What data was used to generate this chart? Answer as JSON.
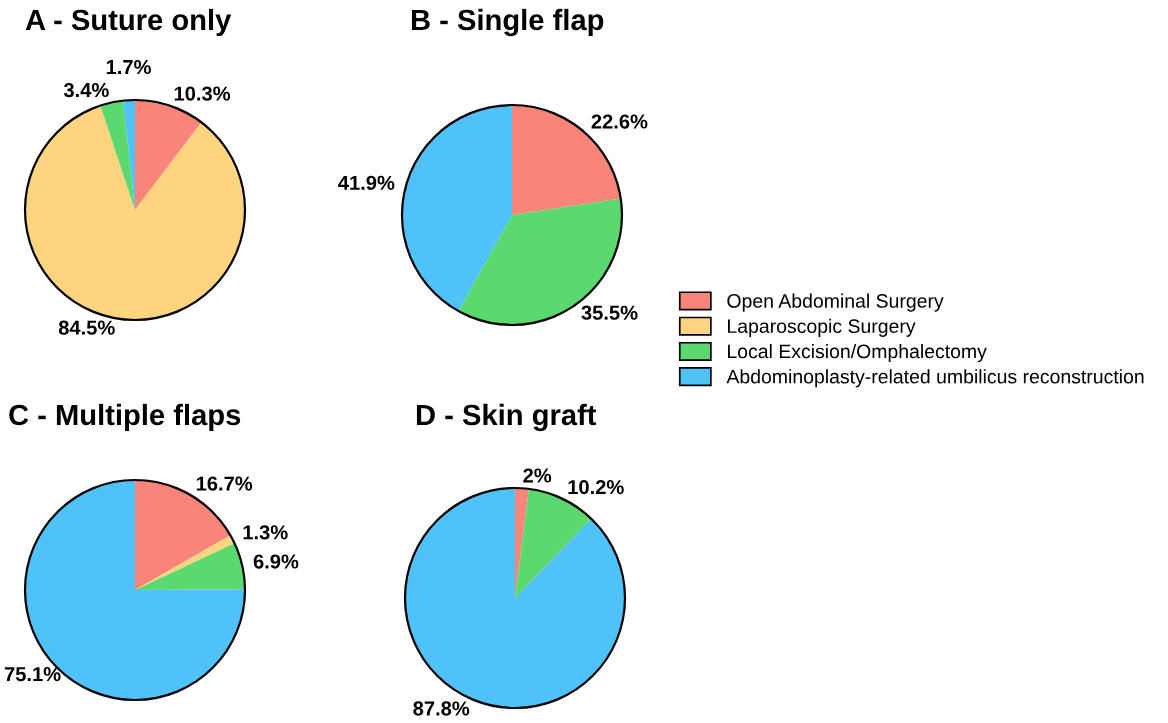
{
  "chart_data": [
    {
      "type": "pie",
      "title": "A - Suture only",
      "categories": [
        "Open Abdominal Surgery",
        "Laparoscopic Surgery",
        "Local Excision/Omphalectomy",
        "Abdominoplasty-related umbilicus reconstruction"
      ],
      "values": [
        10.3,
        84.5,
        3.4,
        1.7
      ],
      "value_labels": [
        "10.3%",
        "84.5%",
        "3.4%",
        "1.7%"
      ],
      "colors": [
        "#f8847a",
        "#fed47e",
        "#5bd96f",
        "#4fc3f9"
      ],
      "legend": "right"
    },
    {
      "type": "pie",
      "title": "B - Single flap",
      "categories": [
        null,
        null,
        null
      ],
      "values": [
        22.6,
        35.5,
        41.9
      ],
      "value_labels": [
        "22.6%",
        "35.5%",
        "41.9%"
      ],
      "colors": [
        "#f8847a",
        "#5bd96f",
        "#4fc3f9"
      ]
    },
    {
      "type": "pie",
      "title": "C - Multiple flaps",
      "categories": [
        null,
        null,
        null,
        null
      ],
      "values": [
        16.7,
        1.3,
        6.9,
        75.1
      ],
      "value_labels": [
        "16.7%",
        "1.3%",
        "6.9%",
        "75.1%"
      ],
      "colors": [
        "#f8847a",
        "#fed47e",
        "#5bd96f",
        "#4fc3f9"
      ]
    },
    {
      "type": "pie",
      "title": "D - Skin graft",
      "categories": [
        null,
        null,
        null
      ],
      "values": [
        2,
        10.2,
        87.8
      ],
      "value_labels": [
        "2%",
        "10.2%",
        "87.8%"
      ],
      "colors": [
        "#f8847a",
        "#5bd96f",
        "#4fc3f9"
      ]
    }
  ]
}
